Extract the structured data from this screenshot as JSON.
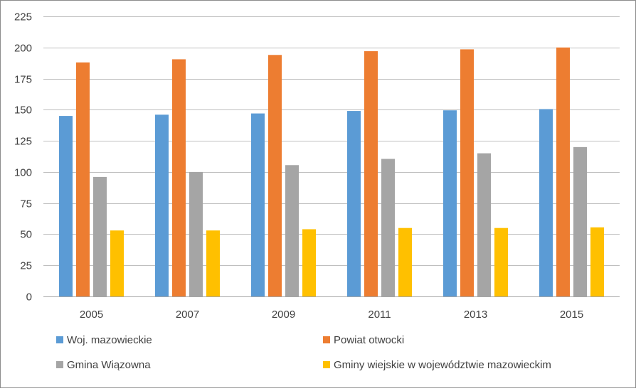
{
  "chart_data": {
    "type": "bar",
    "title": "",
    "xlabel": "",
    "ylabel": "",
    "categories": [
      "2005",
      "2007",
      "2009",
      "2011",
      "2013",
      "2015"
    ],
    "ylim": [
      0,
      225
    ],
    "yticks": [
      0,
      25,
      50,
      75,
      100,
      125,
      150,
      175,
      200,
      225
    ],
    "grid": true,
    "legend_position": "bottom",
    "series": [
      {
        "name": "Woj. mazowieckie",
        "color": "#5B9BD5",
        "values": [
          145,
          146,
          147,
          149,
          149.5,
          150.5
        ]
      },
      {
        "name": "Powiat otwocki",
        "color": "#ED7D31",
        "values": [
          188,
          190.5,
          194,
          197,
          198.5,
          200
        ]
      },
      {
        "name": "Gmina Wiązowna",
        "color": "#A5A5A5",
        "values": [
          96,
          100,
          105.5,
          110.5,
          115,
          120
        ]
      },
      {
        "name": "Gminy wiejskie w województwie mazowieckim",
        "color": "#FFC000",
        "values": [
          53,
          53,
          54,
          55,
          55,
          55.5
        ]
      }
    ]
  }
}
